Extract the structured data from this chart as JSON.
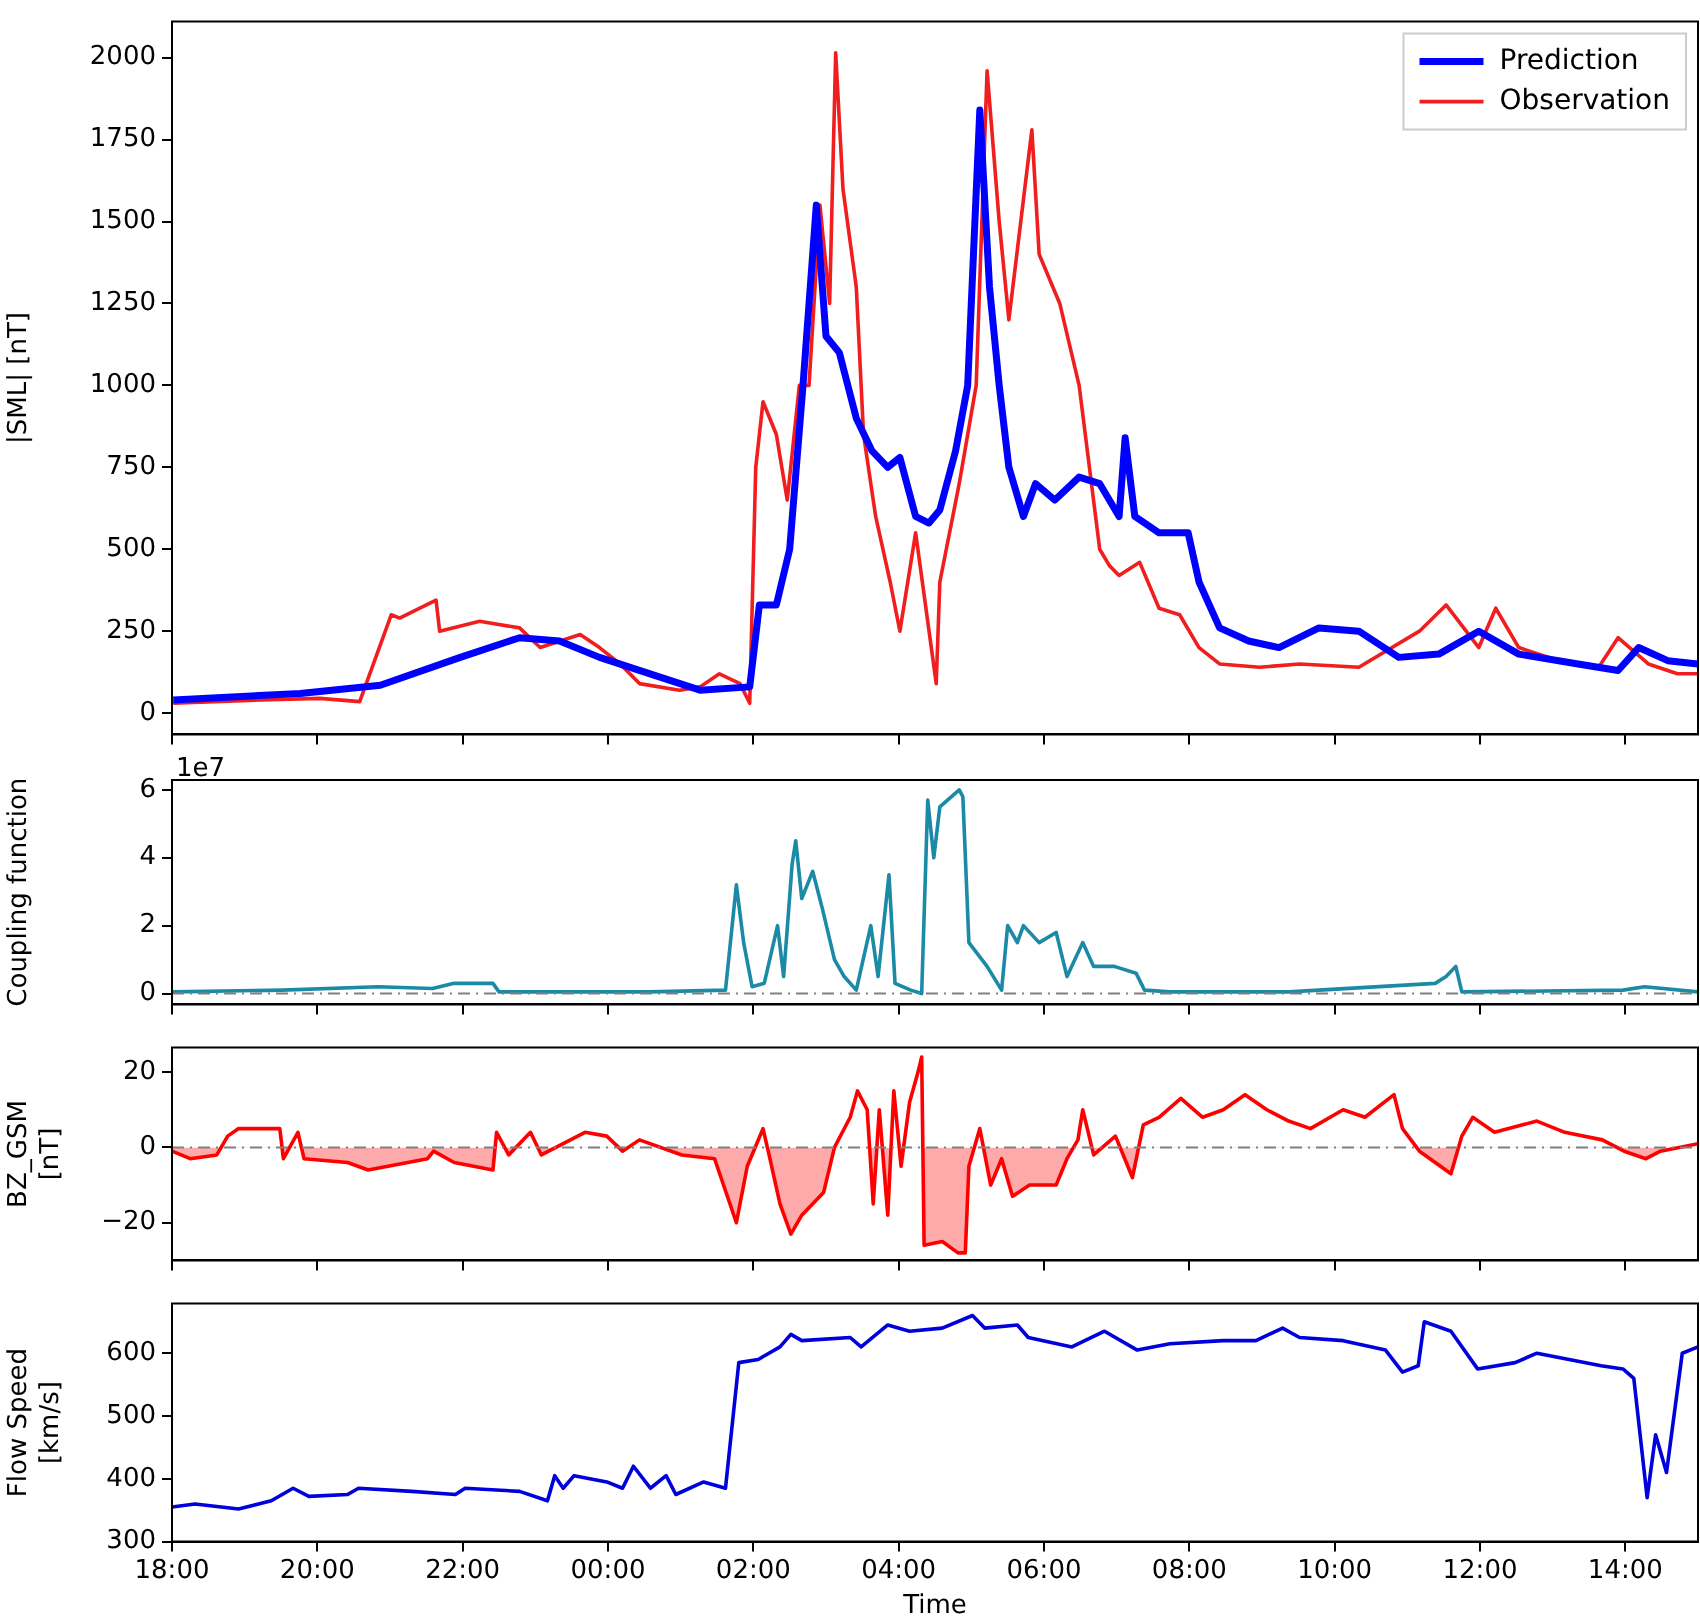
{
  "chart_data": [
    {
      "type": "line",
      "ylabel": "|SML| [nT]",
      "xlim": [
        "2000-01-01T18:00",
        "2000-01-02T15:00"
      ],
      "ylim": [
        -65,
        2110
      ],
      "legend": "top right",
      "tick_labels": "y",
      "xticks": [
        {
          "value": "2000-01-01T18:00",
          "label": null
        },
        {
          "value": "2000-01-01T20:00",
          "label": null
        },
        {
          "value": "2000-01-01T22:00",
          "label": null
        },
        {
          "value": "2000-01-02T00:00",
          "label": null
        },
        {
          "value": "2000-01-02T02:00",
          "label": null
        },
        {
          "value": "2000-01-02T04:00",
          "label": null
        },
        {
          "value": "2000-01-02T06:00",
          "label": null
        },
        {
          "value": "2000-01-02T08:00",
          "label": null
        },
        {
          "value": "2000-01-02T10:00",
          "label": null
        },
        {
          "value": "2000-01-02T12:00",
          "label": null
        },
        {
          "value": "2000-01-02T14:00",
          "label": null
        }
      ],
      "yticks": [
        0,
        250,
        500,
        750,
        1000,
        1250,
        1500,
        1750,
        2000
      ],
      "series": [
        {
          "name": "Prediction",
          "color": "#0000ff",
          "x": [
            "2000-01-01T18:01",
            "2000-01-01T19:46",
            "2000-01-01T20:52",
            "2000-01-01T21:58",
            "2000-01-01T22:47",
            "2000-01-01T23:20",
            "2000-01-01T23:53",
            "2000-01-02T00:43",
            "2000-01-02T01:16",
            "2000-01-02T01:57",
            "2000-01-02T02:05",
            "2000-01-02T02:19",
            "2000-01-02T02:30",
            "2000-01-02T02:41",
            "2000-01-02T02:52",
            "2000-01-02T03:00",
            "2000-01-02T03:11",
            "2000-01-02T03:25",
            "2000-01-02T03:38",
            "2000-01-02T03:51",
            "2000-01-02T04:01",
            "2000-01-02T04:14",
            "2000-01-02T04:25",
            "2000-01-02T04:34",
            "2000-01-02T04:47",
            "2000-01-02T04:57",
            "2000-01-02T05:07",
            "2000-01-02T05:15",
            "2000-01-02T05:23",
            "2000-01-02T05:31",
            "2000-01-02T05:43",
            "2000-01-02T05:53",
            "2000-01-02T06:09",
            "2000-01-02T06:29",
            "2000-01-02T06:46",
            "2000-01-02T07:02",
            "2000-01-02T07:07",
            "2000-01-02T07:15",
            "2000-01-02T07:35",
            "2000-01-02T07:59",
            "2000-01-02T08:08",
            "2000-01-02T08:25",
            "2000-01-02T08:49",
            "2000-01-02T09:14",
            "2000-01-02T09:47",
            "2000-01-02T10:20",
            "2000-01-02T10:53",
            "2000-01-02T11:26",
            "2000-01-02T11:59",
            "2000-01-02T12:32",
            "2000-01-02T13:21",
            "2000-01-02T13:54",
            "2000-01-02T14:11",
            "2000-01-02T14:35",
            "2000-01-02T15:00"
          ],
          "values": [
            40,
            60,
            85,
            170,
            230,
            220,
            170,
            110,
            70,
            80,
            330,
            330,
            500,
            1000,
            1550,
            1150,
            1100,
            900,
            800,
            750,
            780,
            600,
            580,
            620,
            800,
            1000,
            1840,
            1300,
            1000,
            750,
            600,
            700,
            650,
            720,
            700,
            600,
            840,
            600,
            550,
            550,
            400,
            260,
            220,
            200,
            260,
            250,
            170,
            180,
            250,
            180,
            150,
            130,
            200,
            160,
            150
          ]
        },
        {
          "name": "Observation",
          "color": "#f01e1e",
          "x": [
            "2000-01-01T18:01",
            "2000-01-01T19:13",
            "2000-01-01T20:02",
            "2000-01-01T20:35",
            "2000-01-01T21:01",
            "2000-01-01T21:08",
            "2000-01-01T21:38",
            "2000-01-01T21:41",
            "2000-01-01T22:14",
            "2000-01-01T22:47",
            "2000-01-01T23:04",
            "2000-01-01T23:37",
            "2000-01-01T23:53",
            "2000-01-02T00:10",
            "2000-01-02T00:26",
            "2000-01-02T00:59",
            "2000-01-02T01:16",
            "2000-01-02T01:32",
            "2000-01-02T01:49",
            "2000-01-02T01:57",
            "2000-01-02T02:02",
            "2000-01-02T02:08",
            "2000-01-02T02:19",
            "2000-01-02T02:28",
            "2000-01-02T02:38",
            "2000-01-02T02:46",
            "2000-01-02T02:55",
            "2000-01-02T03:03",
            "2000-01-02T03:08",
            "2000-01-02T03:14",
            "2000-01-02T03:25",
            "2000-01-02T03:31",
            "2000-01-02T03:41",
            "2000-01-02T03:53",
            "2000-01-02T04:01",
            "2000-01-02T04:14",
            "2000-01-02T04:31",
            "2000-01-02T04:34",
            "2000-01-02T04:50",
            "2000-01-02T05:04",
            "2000-01-02T05:13",
            "2000-01-02T05:23",
            "2000-01-02T05:31",
            "2000-01-02T05:50",
            "2000-01-02T05:56",
            "2000-01-02T06:13",
            "2000-01-02T06:29",
            "2000-01-02T06:46",
            "2000-01-02T06:54",
            "2000-01-02T07:02",
            "2000-01-02T07:19",
            "2000-01-02T07:35",
            "2000-01-02T07:52",
            "2000-01-02T08:08",
            "2000-01-02T08:25",
            "2000-01-02T08:58",
            "2000-01-02T09:31",
            "2000-01-02T10:20",
            "2000-01-02T11:10",
            "2000-01-02T11:32",
            "2000-01-02T11:59",
            "2000-01-02T12:13",
            "2000-01-02T12:32",
            "2000-01-02T13:05",
            "2000-01-02T13:38",
            "2000-01-02T13:54",
            "2000-01-02T14:19",
            "2000-01-02T14:43",
            "2000-01-02T15:00"
          ],
          "values": [
            30,
            40,
            45,
            35,
            300,
            290,
            345,
            250,
            280,
            260,
            200,
            240,
            200,
            150,
            90,
            70,
            80,
            120,
            90,
            30,
            750,
            950,
            850,
            650,
            1000,
            1000,
            1550,
            1250,
            2015,
            1600,
            1300,
            850,
            600,
            400,
            250,
            550,
            90,
            400,
            700,
            1000,
            1960,
            1500,
            1200,
            1780,
            1400,
            1250,
            1000,
            500,
            450,
            420,
            460,
            320,
            300,
            200,
            150,
            140,
            150,
            140,
            250,
            330,
            200,
            320,
            200,
            160,
            140,
            230,
            150,
            120,
            120
          ]
        }
      ]
    },
    {
      "type": "line",
      "ylabel": "Coupling function",
      "annotations": [
        "1e7"
      ],
      "xlim": [
        "2000-01-01T18:00",
        "2000-01-02T15:00"
      ],
      "ylim": [
        -0.32,
        6.29
      ],
      "tick_labels": "y",
      "xticks": [
        {
          "value": "2000-01-01T18:00",
          "label": null
        },
        {
          "value": "2000-01-01T20:00",
          "label": null
        },
        {
          "value": "2000-01-01T22:00",
          "label": null
        },
        {
          "value": "2000-01-02T00:00",
          "label": null
        },
        {
          "value": "2000-01-02T02:00",
          "label": null
        },
        {
          "value": "2000-01-02T04:00",
          "label": null
        },
        {
          "value": "2000-01-02T06:00",
          "label": null
        },
        {
          "value": "2000-01-02T08:00",
          "label": null
        },
        {
          "value": "2000-01-02T10:00",
          "label": null
        },
        {
          "value": "2000-01-02T12:00",
          "label": null
        },
        {
          "value": "2000-01-02T14:00",
          "label": null
        }
      ],
      "yticks": [
        0,
        2,
        4,
        6
      ],
      "ref_lines": [
        {
          "axis": "y",
          "value": 0,
          "color": "#808080",
          "line_style": "dashed"
        }
      ],
      "series": [
        {
          "color": "#1a8aa6",
          "x": [
            "2000-01-01T18:00",
            "2000-01-01T19:31",
            "2000-01-01T20:50",
            "2000-01-01T21:35",
            "2000-01-01T21:53",
            "2000-01-01T22:25",
            "2000-01-01T22:30",
            "2000-01-02T00:34",
            "2000-01-02T01:37",
            "2000-01-02T01:46",
            "2000-01-02T01:52",
            "2000-01-02T01:59",
            "2000-01-02T02:09",
            "2000-01-02T02:20",
            "2000-01-02T02:25",
            "2000-01-02T02:32",
            "2000-01-02T02:35",
            "2000-01-02T02:40",
            "2000-01-02T02:49",
            "2000-01-02T02:57",
            "2000-01-02T03:07",
            "2000-01-02T03:15",
            "2000-01-02T03:25",
            "2000-01-02T03:37",
            "2000-01-02T03:43",
            "2000-01-02T03:52",
            "2000-01-02T03:57",
            "2000-01-02T04:10",
            "2000-01-02T04:19",
            "2000-01-02T04:24",
            "2000-01-02T04:29",
            "2000-01-02T04:34",
            "2000-01-02T04:50",
            "2000-01-02T04:53",
            "2000-01-02T04:58",
            "2000-01-02T05:13",
            "2000-01-02T05:25",
            "2000-01-02T05:30",
            "2000-01-02T05:38",
            "2000-01-02T05:43",
            "2000-01-02T05:56",
            "2000-01-02T06:10",
            "2000-01-02T06:19",
            "2000-01-02T06:32",
            "2000-01-02T06:41",
            "2000-01-02T06:58",
            "2000-01-02T07:16",
            "2000-01-02T07:23",
            "2000-01-02T07:44",
            "2000-01-02T09:22",
            "2000-01-02T11:23",
            "2000-01-02T11:32",
            "2000-01-02T11:40",
            "2000-01-02T11:45",
            "2000-01-02T13:58",
            "2000-01-02T14:16",
            "2000-01-02T15:00"
          ],
          "values": [
            0.05,
            0.1,
            0.2,
            0.15,
            0.3,
            0.3,
            0.05,
            0.05,
            0.1,
            3.2,
            1.5,
            0.2,
            0.3,
            2.0,
            0.5,
            3.8,
            4.5,
            2.8,
            3.6,
            2.5,
            1.0,
            0.5,
            0.1,
            2.0,
            0.5,
            3.5,
            0.3,
            0.1,
            0.0,
            5.7,
            4.0,
            5.5,
            6.0,
            5.8,
            1.5,
            0.8,
            0.1,
            2.0,
            1.5,
            2.0,
            1.5,
            1.8,
            0.5,
            1.5,
            0.8,
            0.8,
            0.6,
            0.1,
            0.05,
            0.05,
            0.3,
            0.5,
            0.8,
            0.05,
            0.1,
            0.2,
            0.05
          ]
        }
      ]
    },
    {
      "type": "area",
      "ylabel": "BZ_GSM\n[nT]",
      "xlim": [
        "2000-01-01T18:00",
        "2000-01-02T15:00"
      ],
      "ylim": [
        -30,
        26.5
      ],
      "tick_labels": "y",
      "xticks": [
        {
          "value": "2000-01-01T18:00",
          "label": null
        },
        {
          "value": "2000-01-01T20:00",
          "label": null
        },
        {
          "value": "2000-01-01T22:00",
          "label": null
        },
        {
          "value": "2000-01-02T00:00",
          "label": null
        },
        {
          "value": "2000-01-02T02:00",
          "label": null
        },
        {
          "value": "2000-01-02T04:00",
          "label": null
        },
        {
          "value": "2000-01-02T06:00",
          "label": null
        },
        {
          "value": "2000-01-02T08:00",
          "label": null
        },
        {
          "value": "2000-01-02T10:00",
          "label": null
        },
        {
          "value": "2000-01-02T12:00",
          "label": null
        },
        {
          "value": "2000-01-02T14:00",
          "label": null
        }
      ],
      "yticks": [
        {
          "value": -20,
          "label": "−20"
        },
        0,
        20
      ],
      "ref_lines": [
        {
          "axis": "y",
          "value": 0,
          "color": "#808080",
          "line_style": "dashed"
        }
      ],
      "series": [
        {
          "color": "#ff0000",
          "x": [
            "2000-01-01T18:00",
            "2000-01-01T18:15",
            "2000-01-01T18:37",
            "2000-01-01T18:46",
            "2000-01-01T18:55",
            "2000-01-01T19:29",
            "2000-01-01T19:32",
            "2000-01-01T19:44",
            "2000-01-01T19:49",
            "2000-01-01T20:25",
            "2000-01-01T20:42",
            "2000-01-01T21:31",
            "2000-01-01T21:36",
            "2000-01-01T21:53",
            "2000-01-01T22:25",
            "2000-01-01T22:28",
            "2000-01-01T22:38",
            "2000-01-01T22:56",
            "2000-01-01T23:05",
            "2000-01-01T23:41",
            "2000-01-01T23:59",
            "2000-01-02T00:12",
            "2000-01-02T00:26",
            "2000-01-02T01:01",
            "2000-01-02T01:28",
            "2000-01-02T01:46",
            "2000-01-02T01:55",
            "2000-01-02T02:08",
            "2000-01-02T02:13",
            "2000-01-02T02:22",
            "2000-01-02T02:31",
            "2000-01-02T02:40",
            "2000-01-02T02:58",
            "2000-01-02T03:07",
            "2000-01-02T03:20",
            "2000-01-02T03:26",
            "2000-01-02T03:34",
            "2000-01-02T03:39",
            "2000-01-02T03:44",
            "2000-01-02T03:51",
            "2000-01-02T03:56",
            "2000-01-02T04:02",
            "2000-01-02T04:09",
            "2000-01-02T04:16",
            "2000-01-02T04:19",
            "2000-01-02T04:21",
            "2000-01-02T04:36",
            "2000-01-02T04:49",
            "2000-01-02T04:55",
            "2000-01-02T04:58",
            "2000-01-02T05:07",
            "2000-01-02T05:16",
            "2000-01-02T05:25",
            "2000-01-02T05:34",
            "2000-01-02T05:48",
            "2000-01-02T06:10",
            "2000-01-02T06:19",
            "2000-01-02T06:28",
            "2000-01-02T06:32",
            "2000-01-02T06:41",
            "2000-01-02T06:59",
            "2000-01-02T07:13",
            "2000-01-02T07:22",
            "2000-01-02T07:35",
            "2000-01-02T07:53",
            "2000-01-02T08:11",
            "2000-01-02T08:28",
            "2000-01-02T08:46",
            "2000-01-02T09:04",
            "2000-01-02T09:22",
            "2000-01-02T09:40",
            "2000-01-02T10:07",
            "2000-01-02T10:25",
            "2000-01-02T10:49",
            "2000-01-02T10:56",
            "2000-01-02T11:10",
            "2000-01-02T11:36",
            "2000-01-02T11:45",
            "2000-01-02T11:54",
            "2000-01-02T12:12",
            "2000-01-02T12:47",
            "2000-01-02T13:10",
            "2000-01-02T13:41",
            "2000-01-02T13:59",
            "2000-01-02T14:17",
            "2000-01-02T14:29",
            "2000-01-02T15:00"
          ],
          "values": [
            -1,
            -3,
            -2,
            3,
            5,
            5,
            -3,
            4,
            -3,
            -4,
            -6,
            -3,
            -1,
            -4,
            -6,
            4,
            -2,
            4,
            -2,
            4,
            3,
            -1,
            2,
            -2,
            -3,
            -20,
            -5,
            5,
            -2,
            -15,
            -23,
            -18,
            -12,
            0,
            8,
            15,
            10,
            -15,
            10,
            -18,
            15,
            -5,
            12,
            20,
            24,
            -26,
            -25,
            -28,
            -28,
            -5,
            5,
            -10,
            -3,
            -13,
            -10,
            -10,
            -3,
            2,
            10,
            -2,
            3,
            -8,
            6,
            8,
            13,
            8,
            10,
            14,
            10,
            7,
            5,
            10,
            8,
            14,
            5,
            -1,
            -7,
            3,
            8,
            4,
            7,
            4,
            2,
            -1,
            -3,
            -1,
            1
          ]
        }
      ]
    },
    {
      "type": "line",
      "ylabel": "Flow Speed\n[km/s]",
      "xlabel": "Time",
      "xlim": [
        "2000-01-01T18:00",
        "2000-01-02T15:00"
      ],
      "ylim": [
        300,
        679
      ],
      "xticks": [
        {
          "value": "2000-01-01T18:00",
          "label": "18:00"
        },
        {
          "value": "2000-01-01T20:00",
          "label": "20:00"
        },
        {
          "value": "2000-01-01T22:00",
          "label": "22:00"
        },
        {
          "value": "2000-01-02T00:00",
          "label": "00:00"
        },
        {
          "value": "2000-01-02T02:00",
          "label": "02:00"
        },
        {
          "value": "2000-01-02T04:00",
          "label": "04:00"
        },
        {
          "value": "2000-01-02T06:00",
          "label": "06:00"
        },
        {
          "value": "2000-01-02T08:00",
          "label": "08:00"
        },
        {
          "value": "2000-01-02T10:00",
          "label": "10:00"
        },
        {
          "value": "2000-01-02T12:00",
          "label": "12:00"
        },
        {
          "value": "2000-01-02T14:00",
          "label": "14:00"
        }
      ],
      "yticks": [
        300,
        400,
        500,
        600
      ],
      "series": [
        {
          "color": "#0000dd",
          "x": [
            "2000-01-01T18:00",
            "2000-01-01T18:19",
            "2000-01-01T18:55",
            "2000-01-01T19:22",
            "2000-01-01T19:40",
            "2000-01-01T19:53",
            "2000-01-01T20:25",
            "2000-01-01T20:34",
            "2000-01-01T21:18",
            "2000-01-01T21:54",
            "2000-01-01T22:02",
            "2000-01-01T22:47",
            "2000-01-01T23:10",
            "2000-01-01T23:16",
            "2000-01-01T23:23",
            "2000-01-01T23:32",
            "2000-01-01T23:59",
            "2000-01-02T00:12",
            "2000-01-02T00:21",
            "2000-01-02T00:35",
            "2000-01-02T00:48",
            "2000-01-02T00:56",
            "2000-01-02T01:19",
            "2000-01-02T01:37",
            "2000-01-02T01:48",
            "2000-01-02T02:04",
            "2000-01-02T02:22",
            "2000-01-02T02:31",
            "2000-01-02T02:40",
            "2000-01-02T03:20",
            "2000-01-02T03:29",
            "2000-01-02T03:51",
            "2000-01-02T04:09",
            "2000-01-02T04:36",
            "2000-01-02T05:01",
            "2000-01-02T05:11",
            "2000-01-02T05:38",
            "2000-01-02T05:47",
            "2000-01-02T06:23",
            "2000-01-02T06:50",
            "2000-01-02T07:17",
            "2000-01-02T07:44",
            "2000-01-02T08:28",
            "2000-01-02T08:55",
            "2000-01-02T09:17",
            "2000-01-02T09:31",
            "2000-01-02T10:07",
            "2000-01-02T10:42",
            "2000-01-02T10:56",
            "2000-01-02T11:09",
            "2000-01-02T11:14",
            "2000-01-02T11:36",
            "2000-01-02T11:58",
            "2000-01-02T12:29",
            "2000-01-02T12:47",
            "2000-01-02T13:40",
            "2000-01-02T13:58",
            "2000-01-02T14:07",
            "2000-01-02T14:18",
            "2000-01-02T14:25",
            "2000-01-02T14:34",
            "2000-01-02T14:47",
            "2000-01-02T15:00"
          ],
          "values": [
            355,
            360,
            352,
            365,
            385,
            372,
            375,
            385,
            380,
            375,
            385,
            380,
            365,
            405,
            385,
            405,
            395,
            385,
            420,
            385,
            405,
            375,
            395,
            385,
            585,
            590,
            610,
            630,
            620,
            625,
            610,
            645,
            635,
            640,
            660,
            640,
            645,
            625,
            610,
            635,
            605,
            615,
            620,
            620,
            640,
            625,
            620,
            605,
            570,
            580,
            650,
            635,
            575,
            585,
            600,
            580,
            575,
            560,
            370,
            470,
            410,
            600,
            610
          ]
        }
      ]
    }
  ]
}
